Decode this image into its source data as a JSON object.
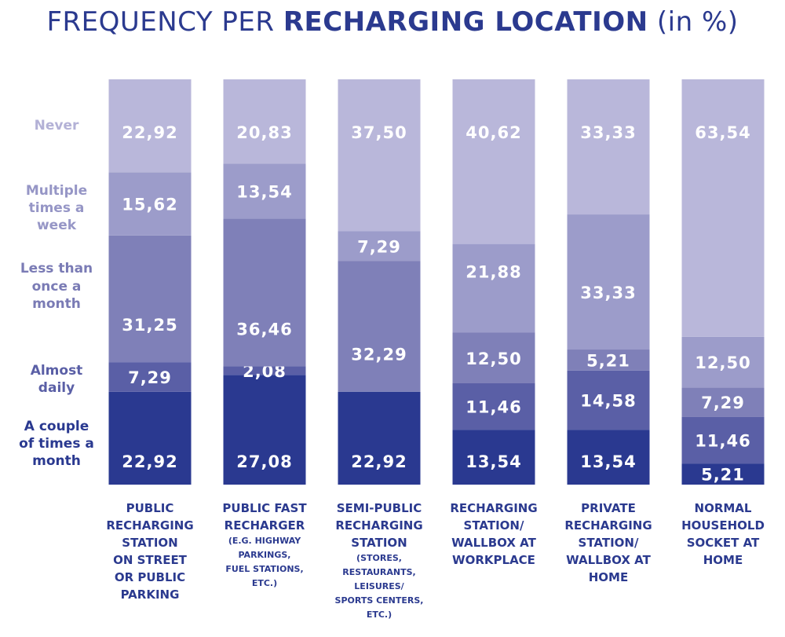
{
  "chart_data": {
    "type": "bar",
    "stacked": true,
    "title_prefix": "FREQUENCY PER ",
    "title_bold": "RECHARGING LOCATION",
    "title_suffix": " (in %)",
    "categories": [
      {
        "main": [
          "PUBLIC",
          "RECHARGING",
          "STATION",
          "ON STREET",
          "OR PUBLIC",
          "PARKING"
        ],
        "sub": []
      },
      {
        "main": [
          "PUBLIC FAST",
          "RECHARGER"
        ],
        "sub": [
          "(E.G. HIGHWAY",
          "PARKINGS,",
          "FUEL STATIONS,",
          "ETC.)"
        ]
      },
      {
        "main": [
          "SEMI-PUBLIC",
          "RECHARGING",
          "STATION"
        ],
        "sub": [
          "(STORES,",
          "RESTAURANTS,",
          "LEISURES/",
          "SPORTS CENTERS,",
          "ETC.)"
        ]
      },
      {
        "main": [
          "RECHARGING",
          "STATION/",
          "WALLBOX AT",
          "WORKPLACE"
        ],
        "sub": []
      },
      {
        "main": [
          "PRIVATE",
          "RECHARGING",
          "STATION/",
          "WALLBOX AT",
          "HOME"
        ],
        "sub": []
      },
      {
        "main": [
          "NORMAL",
          "HOUSEHOLD",
          "SOCKET AT",
          "HOME"
        ],
        "sub": []
      }
    ],
    "series": [
      {
        "name": "A couple of times a month",
        "legend_lines": [
          "A couple",
          "of times a",
          "month"
        ],
        "color": "#2a3990",
        "legend_color": "#2a3990",
        "values": [
          22.92,
          27.08,
          22.92,
          13.54,
          13.54,
          5.21
        ],
        "labels": [
          "22,92",
          "27,08",
          "22,92",
          "13,54",
          "13,54",
          "5,21"
        ]
      },
      {
        "name": "Almost daily",
        "legend_lines": [
          "Almost",
          "daily"
        ],
        "color": "#5a5fa6",
        "legend_color": "#5a5fa6",
        "values": [
          7.29,
          2.08,
          0,
          11.46,
          14.58,
          11.46
        ],
        "labels": [
          "7,29",
          "2,08",
          "",
          "11,46",
          "14,58",
          "11,46"
        ]
      },
      {
        "name": "Less than once a month",
        "legend_lines": [
          "Less than",
          "once a",
          "month"
        ],
        "color": "#7f80b8",
        "legend_color": "#7a7bb5",
        "values": [
          31.25,
          36.46,
          32.29,
          12.5,
          5.21,
          7.29
        ],
        "labels": [
          "31,25",
          "36,46",
          "32,29",
          "12,50",
          "5,21",
          "7,29"
        ]
      },
      {
        "name": "Multiple times a week",
        "legend_lines": [
          "Multiple",
          "times a",
          "week"
        ],
        "color": "#9c9cca",
        "legend_color": "#9696c6",
        "values": [
          15.62,
          13.54,
          7.29,
          21.88,
          33.33,
          12.5
        ],
        "labels": [
          "15,62",
          "13,54",
          "7,29",
          "21,88",
          "33,33",
          "12,50"
        ]
      },
      {
        "name": "Never",
        "legend_lines": [
          "Never"
        ],
        "color": "#b9b7da",
        "legend_color": "#b3b1d6",
        "values": [
          22.92,
          20.83,
          37.5,
          40.62,
          33.33,
          63.54
        ],
        "labels": [
          "22,92",
          "20,83",
          "37,50",
          "40,62",
          "33,33",
          "63,54"
        ]
      }
    ],
    "ylim": [
      0,
      100
    ],
    "xlabel": "",
    "ylabel": ""
  }
}
